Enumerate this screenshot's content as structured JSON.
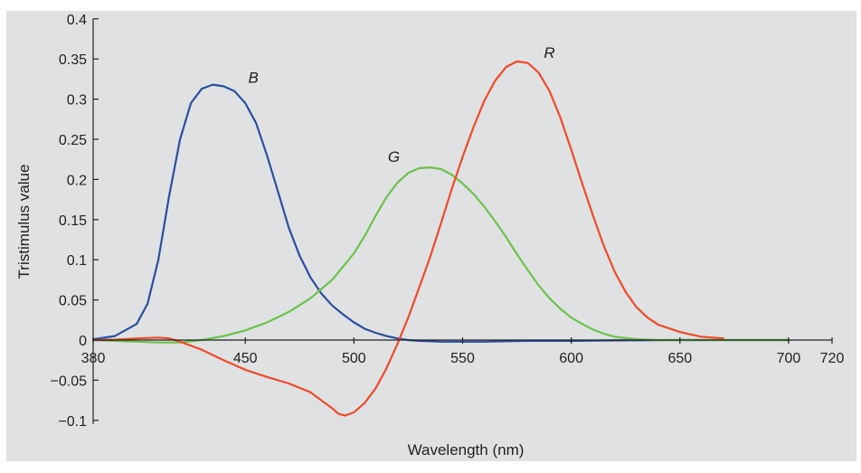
{
  "chart_data": {
    "type": "line",
    "xlabel": "Wavelength (nm)",
    "ylabel": "Tristimulus value",
    "xlim": [
      380,
      720
    ],
    "ylim": [
      -0.1,
      0.4
    ],
    "x_ticks": [
      {
        "value": 380,
        "label": "380"
      },
      {
        "value": 450,
        "label": "450"
      },
      {
        "value": 500,
        "label": "500"
      },
      {
        "value": 550,
        "label": "550"
      },
      {
        "value": 600,
        "label": "600"
      },
      {
        "value": 650,
        "label": "650"
      },
      {
        "value": 700,
        "label": "700"
      },
      {
        "value": 720,
        "label": "720"
      }
    ],
    "y_ticks": [
      {
        "value": 0.4,
        "label": "0.4"
      },
      {
        "value": 0.35,
        "label": "0.35"
      },
      {
        "value": 0.3,
        "label": "0.3"
      },
      {
        "value": 0.25,
        "label": "0.25"
      },
      {
        "value": 0.2,
        "label": "0.2"
      },
      {
        "value": 0.15,
        "label": "0.15"
      },
      {
        "value": 0.1,
        "label": "0.1"
      },
      {
        "value": 0.05,
        "label": "0.05"
      },
      {
        "value": 0,
        "label": "0"
      },
      {
        "value": -0.05,
        "label": "−0.05"
      },
      {
        "value": -0.1,
        "label": "−0.1"
      }
    ],
    "grid": false,
    "background": "#dfe1e2",
    "series": [
      {
        "name": "B",
        "color": "#2b4fa0",
        "points": [
          [
            380,
            0.001
          ],
          [
            390,
            0.005
          ],
          [
            400,
            0.02
          ],
          [
            405,
            0.045
          ],
          [
            410,
            0.1
          ],
          [
            415,
            0.18
          ],
          [
            420,
            0.25
          ],
          [
            425,
            0.295
          ],
          [
            430,
            0.313
          ],
          [
            435,
            0.318
          ],
          [
            440,
            0.316
          ],
          [
            445,
            0.31
          ],
          [
            450,
            0.295
          ],
          [
            455,
            0.27
          ],
          [
            460,
            0.23
          ],
          [
            465,
            0.185
          ],
          [
            470,
            0.14
          ],
          [
            475,
            0.105
          ],
          [
            480,
            0.078
          ],
          [
            485,
            0.058
          ],
          [
            490,
            0.043
          ],
          [
            495,
            0.032
          ],
          [
            500,
            0.022
          ],
          [
            505,
            0.014
          ],
          [
            510,
            0.009
          ],
          [
            515,
            0.005
          ],
          [
            520,
            0.002
          ],
          [
            525,
            0.0
          ],
          [
            530,
            -0.001
          ],
          [
            540,
            -0.002
          ],
          [
            550,
            -0.002
          ],
          [
            560,
            -0.002
          ],
          [
            580,
            -0.001
          ],
          [
            600,
            -0.001
          ],
          [
            620,
            -0.0005
          ],
          [
            650,
            0.0
          ],
          [
            700,
            0.0
          ]
        ]
      },
      {
        "name": "G",
        "color": "#6cc24a",
        "points": [
          [
            380,
            0.0
          ],
          [
            390,
            -0.001
          ],
          [
            400,
            -0.002
          ],
          [
            410,
            -0.003
          ],
          [
            420,
            -0.003
          ],
          [
            430,
            0.0
          ],
          [
            440,
            0.005
          ],
          [
            450,
            0.012
          ],
          [
            460,
            0.022
          ],
          [
            470,
            0.035
          ],
          [
            480,
            0.052
          ],
          [
            490,
            0.075
          ],
          [
            500,
            0.108
          ],
          [
            505,
            0.13
          ],
          [
            510,
            0.155
          ],
          [
            515,
            0.178
          ],
          [
            520,
            0.196
          ],
          [
            525,
            0.208
          ],
          [
            530,
            0.214
          ],
          [
            535,
            0.215
          ],
          [
            540,
            0.213
          ],
          [
            545,
            0.206
          ],
          [
            550,
            0.195
          ],
          [
            555,
            0.182
          ],
          [
            560,
            0.166
          ],
          [
            565,
            0.148
          ],
          [
            570,
            0.128
          ],
          [
            575,
            0.107
          ],
          [
            580,
            0.087
          ],
          [
            585,
            0.068
          ],
          [
            590,
            0.052
          ],
          [
            595,
            0.039
          ],
          [
            600,
            0.028
          ],
          [
            605,
            0.02
          ],
          [
            610,
            0.013
          ],
          [
            615,
            0.008
          ],
          [
            620,
            0.004
          ],
          [
            630,
            0.001
          ],
          [
            640,
            0.0
          ],
          [
            650,
            0.0
          ],
          [
            700,
            0.0
          ]
        ]
      },
      {
        "name": "R",
        "color": "#f04a2a",
        "points": [
          [
            380,
            0.0
          ],
          [
            390,
            0.0005
          ],
          [
            400,
            0.002
          ],
          [
            410,
            0.003
          ],
          [
            415,
            0.002
          ],
          [
            420,
            -0.002
          ],
          [
            430,
            -0.012
          ],
          [
            440,
            -0.025
          ],
          [
            450,
            -0.037
          ],
          [
            460,
            -0.046
          ],
          [
            470,
            -0.054
          ],
          [
            480,
            -0.065
          ],
          [
            485,
            -0.075
          ],
          [
            490,
            -0.085
          ],
          [
            493,
            -0.092
          ],
          [
            496,
            -0.094
          ],
          [
            500,
            -0.09
          ],
          [
            505,
            -0.078
          ],
          [
            510,
            -0.06
          ],
          [
            515,
            -0.035
          ],
          [
            520,
            -0.005
          ],
          [
            525,
            0.028
          ],
          [
            530,
            0.065
          ],
          [
            535,
            0.103
          ],
          [
            540,
            0.145
          ],
          [
            545,
            0.188
          ],
          [
            550,
            0.228
          ],
          [
            555,
            0.265
          ],
          [
            560,
            0.298
          ],
          [
            565,
            0.323
          ],
          [
            570,
            0.34
          ],
          [
            575,
            0.347
          ],
          [
            580,
            0.345
          ],
          [
            585,
            0.333
          ],
          [
            590,
            0.31
          ],
          [
            595,
            0.277
          ],
          [
            600,
            0.237
          ],
          [
            605,
            0.195
          ],
          [
            610,
            0.155
          ],
          [
            615,
            0.117
          ],
          [
            620,
            0.085
          ],
          [
            625,
            0.06
          ],
          [
            630,
            0.041
          ],
          [
            635,
            0.028
          ],
          [
            640,
            0.019
          ],
          [
            650,
            0.01
          ],
          [
            660,
            0.004
          ],
          [
            670,
            0.002
          ]
        ]
      }
    ]
  }
}
